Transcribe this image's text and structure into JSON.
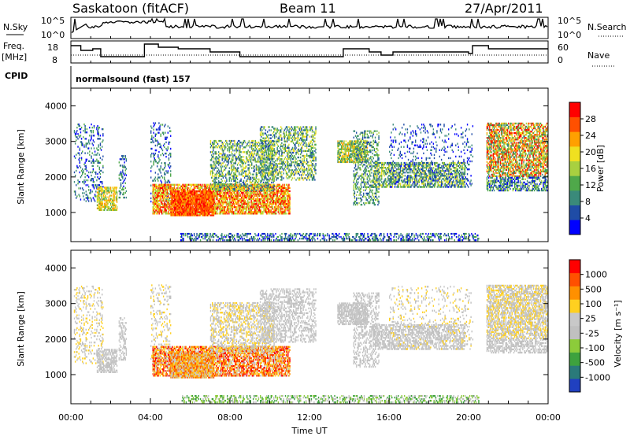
{
  "header": {
    "site": "Saskatoon (fitACF)",
    "beam": "Beam 11",
    "date": "27/Apr/2011"
  },
  "noise_panel": {
    "left_label": "N.Sky",
    "right_label": "N.Search",
    "left_ticks": [
      "10^5",
      "10^0"
    ],
    "right_ticks": [
      "10^5",
      "10^0"
    ]
  },
  "freq_panel": {
    "left_label_1": "Freq.",
    "left_label_2": "[MHz]",
    "right_label": "Nave",
    "left_ticks": [
      "18",
      "8"
    ],
    "right_ticks": [
      "60",
      "0"
    ]
  },
  "cpid": {
    "label": "CPID",
    "value": "normalsound (fast) 157"
  },
  "colors": {
    "power_scale": [
      "#0000ff",
      "#1f4ca6",
      "#3a8a7a",
      "#4fa84a",
      "#a8d040",
      "#f0e020",
      "#ffa000",
      "#ff5000",
      "#ff0000"
    ],
    "velocity_scale": [
      "#2040c0",
      "#2a7a7a",
      "#3ea23e",
      "#8ccc3a",
      "#c0c0c0",
      "#c8c8c8",
      "#ffd020",
      "#ff9000",
      "#ff5000",
      "#ff0000"
    ]
  },
  "chart_data": [
    {
      "type": "heatmap",
      "name": "power",
      "xlabel": "",
      "ylabel": "Slant Range [km]",
      "x_range_hours": [
        0,
        24
      ],
      "ylim": [
        180,
        4500
      ],
      "y_ticks": [
        "4000",
        "3000",
        "2000",
        "1000"
      ],
      "colorbar": {
        "label": "Power [dB]",
        "ticks": [
          "28",
          "24",
          "20",
          "16",
          "12",
          "8",
          "4"
        ]
      }
    },
    {
      "type": "heatmap",
      "name": "velocity",
      "xlabel": "Time UT",
      "ylabel": "Slant Range [km]",
      "x_ticks": [
        "00:00",
        "04:00",
        "08:00",
        "12:00",
        "16:00",
        "20:00",
        "00:00"
      ],
      "x_range_hours": [
        0,
        24
      ],
      "ylim": [
        180,
        4500
      ],
      "y_ticks": [
        "4000",
        "3000",
        "2000",
        "1000"
      ],
      "colorbar": {
        "label": "Velocity [m s⁻¹]",
        "ticks": [
          "1000",
          "500",
          "100",
          "25",
          "-25",
          "-100",
          "-500",
          "-1000"
        ]
      }
    }
  ]
}
